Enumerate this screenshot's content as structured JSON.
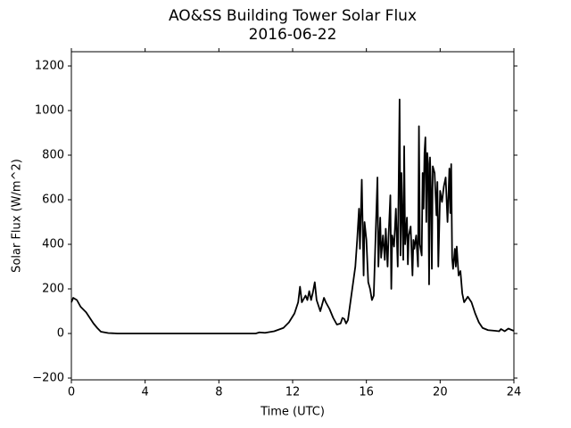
{
  "chart_data": {
    "type": "line",
    "title": "AO&SS Building Tower Solar Flux",
    "subtitle": "2016-06-22",
    "x_label": "Time (UTC)",
    "y_label": "Solar Flux (W/m^2)",
    "xlim": [
      0,
      24
    ],
    "xticks": [
      0,
      4,
      8,
      12,
      16,
      20,
      24
    ],
    "ylim": [
      -208,
      1264
    ],
    "yticks": [
      {
        "value": -200,
        "label": "−200"
      },
      0,
      200,
      400,
      600,
      800,
      1000,
      1200
    ],
    "grid": false,
    "series": [
      {
        "name": "Solar Flux",
        "color": "#000000",
        "x": [
          0,
          0.1,
          0.3,
          0.5,
          0.8,
          1.0,
          1.2,
          1.4,
          1.6,
          2.0,
          2.5,
          10,
          10.2,
          10.5,
          11,
          11.5,
          11.8,
          12.1,
          12.3,
          12.4,
          12.5,
          12.7,
          12.8,
          12.9,
          13.0,
          13.1,
          13.2,
          13.3,
          13.5,
          13.7,
          13.8,
          14.0,
          14.2,
          14.4,
          14.6,
          14.7,
          14.8,
          14.9,
          15.0,
          15.2,
          15.4,
          15.5,
          15.6,
          15.65,
          15.75,
          15.85,
          15.9,
          16.0,
          16.1,
          16.2,
          16.3,
          16.4,
          16.5,
          16.6,
          16.65,
          16.75,
          16.8,
          16.9,
          17.0,
          17.05,
          17.15,
          17.2,
          17.3,
          17.35,
          17.4,
          17.5,
          17.6,
          17.7,
          17.8,
          17.85,
          17.9,
          18.0,
          18.05,
          18.1,
          18.2,
          18.25,
          18.3,
          18.4,
          18.5,
          18.55,
          18.6,
          18.7,
          18.8,
          18.85,
          18.9,
          19.0,
          19.05,
          19.1,
          19.15,
          19.2,
          19.25,
          19.3,
          19.35,
          19.4,
          19.45,
          19.5,
          19.55,
          19.6,
          19.7,
          19.8,
          19.85,
          19.9,
          20.0,
          20.1,
          20.2,
          20.3,
          20.4,
          20.5,
          20.55,
          20.6,
          20.65,
          20.7,
          20.8,
          20.85,
          20.9,
          21.0,
          21.1,
          21.2,
          21.3,
          21.5,
          21.7,
          21.9,
          22.1,
          22.3,
          22.6,
          23.0,
          23.2,
          23.3,
          23.5,
          23.7,
          23.9,
          24.0
        ],
        "values": [
          140,
          160,
          150,
          120,
          95,
          70,
          45,
          25,
          8,
          2,
          0,
          0,
          5,
          3,
          10,
          25,
          50,
          90,
          140,
          210,
          140,
          170,
          150,
          190,
          150,
          185,
          230,
          150,
          100,
          160,
          140,
          110,
          70,
          40,
          45,
          70,
          65,
          45,
          60,
          180,
          300,
          420,
          560,
          380,
          690,
          260,
          500,
          420,
          230,
          200,
          150,
          170,
          440,
          700,
          300,
          520,
          340,
          440,
          330,
          470,
          300,
          430,
          620,
          200,
          440,
          390,
          560,
          300,
          1050,
          350,
          720,
          330,
          840,
          400,
          520,
          310,
          440,
          480,
          260,
          420,
          380,
          440,
          300,
          930,
          400,
          350,
          720,
          560,
          810,
          880,
          500,
          810,
          760,
          220,
          790,
          650,
          290,
          750,
          720,
          530,
          680,
          300,
          640,
          590,
          660,
          700,
          500,
          740,
          540,
          760,
          340,
          290,
          380,
          300,
          390,
          260,
          280,
          180,
          140,
          165,
          140,
          90,
          50,
          25,
          15,
          12,
          10,
          20,
          10,
          22,
          15,
          12
        ]
      }
    ]
  }
}
